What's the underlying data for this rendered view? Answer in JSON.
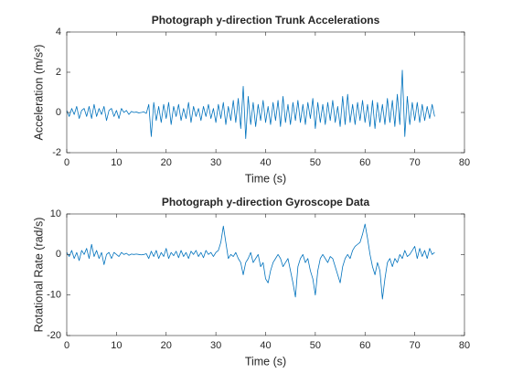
{
  "chart_data": [
    {
      "type": "line",
      "title": "Photograph y-direction Trunk Accelerations",
      "xlabel": "Time (s)",
      "ylabel": "Acceleration (m/s²)",
      "color": "#0072bd",
      "xlim": [
        0,
        80
      ],
      "xticks": [
        0,
        10,
        20,
        30,
        40,
        50,
        60,
        70,
        80
      ],
      "ylim": [
        -2,
        4
      ],
      "yticks": [
        -2,
        0,
        2,
        4
      ],
      "x": [
        0,
        0.5,
        1,
        1.5,
        2,
        2.5,
        3,
        3.5,
        4,
        4.5,
        5,
        5.5,
        6,
        6.5,
        7,
        7.5,
        8,
        8.5,
        9,
        9.5,
        10,
        10.5,
        11,
        11.5,
        12,
        12.5,
        13,
        13.5,
        14,
        14.5,
        15,
        15.5,
        16,
        16.5,
        17,
        17.5,
        18,
        18.5,
        19,
        19.5,
        20,
        20.5,
        21,
        21.5,
        22,
        22.5,
        23,
        23.5,
        24,
        24.5,
        25,
        25.5,
        26,
        26.5,
        27,
        27.5,
        28,
        28.5,
        29,
        29.5,
        30,
        30.5,
        31,
        31.5,
        32,
        32.5,
        33,
        33.5,
        34,
        34.5,
        35,
        35.5,
        36,
        36.5,
        37,
        37.5,
        38,
        38.5,
        39,
        39.5,
        40,
        40.5,
        41,
        41.5,
        42,
        42.5,
        43,
        43.5,
        44,
        44.5,
        45,
        45.5,
        46,
        46.5,
        47,
        47.5,
        48,
        48.5,
        49,
        49.5,
        50,
        50.5,
        51,
        51.5,
        52,
        52.5,
        53,
        53.5,
        54,
        54.5,
        55,
        55.5,
        56,
        56.5,
        57,
        57.5,
        58,
        58.5,
        59,
        59.5,
        60,
        60.5,
        61,
        61.5,
        62,
        62.5,
        63,
        63.5,
        64,
        64.5,
        65,
        65.5,
        66,
        66.5,
        67,
        67.5,
        68,
        68.5,
        69,
        69.5,
        70,
        70.5,
        71,
        71.5,
        72,
        72.5,
        73,
        73.5,
        74
      ],
      "values": [
        0.1,
        -0.2,
        0.2,
        -0.1,
        0.3,
        -0.3,
        0.1,
        0.2,
        -0.2,
        0.3,
        -0.3,
        0.4,
        -0.2,
        0.2,
        -0.1,
        0.3,
        -0.4,
        0.1,
        0.2,
        -0.2,
        0.1,
        -0.3,
        0.2,
        0,
        0.1,
        -0.1,
        0.05,
        0,
        0.02,
        -0.02,
        0,
        0.03,
        -0.05,
        0.4,
        -1.2,
        0.5,
        -0.4,
        0.3,
        -0.5,
        0.4,
        -0.3,
        0.5,
        -0.6,
        0.3,
        -0.2,
        0.4,
        -0.4,
        0.2,
        -0.3,
        0.5,
        -0.5,
        0.3,
        -0.2,
        0.2,
        -0.4,
        0.3,
        -0.2,
        0.4,
        -0.3,
        0.2,
        -0.5,
        0.4,
        -0.3,
        0.5,
        -0.6,
        0.3,
        -0.4,
        0.6,
        -0.5,
        0.7,
        -0.8,
        1.3,
        -1.3,
        0.8,
        -0.6,
        0.5,
        -0.7,
        0.4,
        -0.4,
        0.6,
        -0.5,
        0.3,
        -0.6,
        0.5,
        -0.4,
        0.6,
        -0.7,
        0.8,
        -0.5,
        0.4,
        -0.6,
        0.5,
        -0.4,
        0.6,
        -0.5,
        0.4,
        -0.6,
        0.5,
        -0.3,
        0.7,
        -0.8,
        0.5,
        -0.5,
        0.4,
        -0.6,
        0.5,
        -0.4,
        0.6,
        -0.5,
        0.3,
        -0.7,
        0.8,
        -0.6,
        0.9,
        -0.5,
        0.4,
        -0.6,
        0.5,
        -0.4,
        0.6,
        -0.5,
        0.4,
        -0.7,
        0.6,
        -0.8,
        0.5,
        -0.5,
        0.4,
        -0.6,
        0.7,
        -0.5,
        0.6,
        -0.7,
        0.9,
        -0.6,
        2.1,
        -1.2,
        0.8,
        -0.6,
        0.5,
        -0.4,
        0.5,
        -0.5,
        0.4,
        -0.4,
        0.3,
        -0.3,
        0.4,
        -0.2
      ]
    },
    {
      "type": "line",
      "title": "Photograph y-direction Gyroscope Data",
      "xlabel": "Time (s)",
      "ylabel": "Rotational Rate (rad/s)",
      "color": "#0072bd",
      "xlim": [
        0,
        80
      ],
      "xticks": [
        0,
        10,
        20,
        30,
        40,
        50,
        60,
        70,
        80
      ],
      "ylim": [
        -20,
        10
      ],
      "yticks": [
        -20,
        -10,
        0,
        10
      ],
      "x": [
        0,
        0.5,
        1,
        1.5,
        2,
        2.5,
        3,
        3.5,
        4,
        4.5,
        5,
        5.5,
        6,
        6.5,
        7,
        7.5,
        8,
        8.5,
        9,
        9.5,
        10,
        10.5,
        11,
        11.5,
        12,
        12.5,
        13,
        13.5,
        14,
        14.5,
        15,
        15.5,
        16,
        16.5,
        17,
        17.5,
        18,
        18.5,
        19,
        19.5,
        20,
        20.5,
        21,
        21.5,
        22,
        22.5,
        23,
        23.5,
        24,
        24.5,
        25,
        25.5,
        26,
        26.5,
        27,
        27.5,
        28,
        28.5,
        29,
        29.5,
        30,
        30.5,
        31,
        31.5,
        32,
        32.5,
        33,
        33.5,
        34,
        34.5,
        35,
        35.5,
        36,
        36.5,
        37,
        37.5,
        38,
        38.5,
        39,
        39.5,
        40,
        40.5,
        41,
        41.5,
        42,
        42.5,
        43,
        43.5,
        44,
        44.5,
        45,
        45.5,
        46,
        46.5,
        47,
        47.5,
        48,
        48.5,
        49,
        49.5,
        50,
        50.5,
        51,
        51.5,
        52,
        52.5,
        53,
        53.5,
        54,
        54.5,
        55,
        55.5,
        56,
        56.5,
        57,
        57.5,
        58,
        58.5,
        59,
        59.5,
        60,
        60.5,
        61,
        61.5,
        62,
        62.5,
        63,
        63.5,
        64,
        64.5,
        65,
        65.5,
        66,
        66.5,
        67,
        67.5,
        68,
        68.5,
        69,
        69.5,
        70,
        70.5,
        71,
        71.5,
        72,
        72.5,
        73,
        73.5,
        74
      ],
      "values": [
        0.5,
        -0.5,
        1,
        -1,
        0.5,
        -1.5,
        1,
        0,
        1.5,
        -1,
        2.5,
        -0.5,
        1,
        -1,
        0.5,
        -2.5,
        0,
        0.5,
        -1,
        0.5,
        0,
        -0.5,
        0.5,
        0,
        0.3,
        -0.2,
        0.1,
        0,
        0.1,
        0,
        -0.1,
        0,
        0.2,
        -1,
        0.8,
        -0.5,
        1,
        -1,
        0.5,
        -0.5,
        1.5,
        -1,
        0.5,
        -0.3,
        0.8,
        -0.8,
        1,
        -0.5,
        0.5,
        -1,
        0.8,
        0,
        1,
        -0.5,
        0.5,
        -0.8,
        1,
        0,
        0.5,
        -0.5,
        0.5,
        1,
        3,
        7,
        3,
        -1,
        0,
        -0.5,
        0.5,
        -1,
        -2,
        -5,
        -2,
        -1,
        0.5,
        -2,
        -1,
        0,
        -3,
        -2,
        -6,
        -7,
        -4,
        -2,
        -1,
        0,
        -1,
        -3,
        -2,
        -1,
        -4,
        -7,
        -10.5,
        -3,
        -1,
        0,
        -2,
        -1,
        -4,
        -6,
        -10,
        -4,
        -1,
        0,
        -1,
        -2,
        -0.5,
        -1,
        -3,
        -5,
        -7,
        -3,
        -1,
        0,
        -1,
        1,
        2,
        2.5,
        3,
        5,
        7.5,
        4,
        0,
        -3,
        -5,
        -2,
        -4,
        -11,
        -6,
        -2,
        -1,
        -3,
        -1,
        -2,
        0,
        -1,
        1,
        -0.5,
        0,
        1,
        2,
        -1,
        1.5,
        -0.5,
        1,
        -1,
        1.5,
        0,
        0.5
      ]
    }
  ]
}
